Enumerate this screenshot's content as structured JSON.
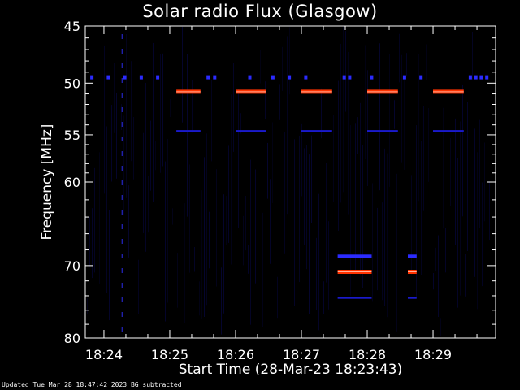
{
  "chart_data": {
    "type": "heatmap",
    "title": "Solar radio Flux (Glasgow)",
    "xlabel": "Start Time (28-Mar-23 18:23:43)",
    "ylabel": "Frequency [MHz]",
    "footer": "Updated Tue Mar 28 18:47:42 2023   BG subtracted",
    "y_scale": "log",
    "y_inverted": true,
    "ylim": [
      45,
      80
    ],
    "y_ticks": [
      45,
      50,
      55,
      60,
      70,
      80
    ],
    "y_tick_labels": [
      "45",
      "50",
      "55",
      "60",
      "70",
      "80"
    ],
    "xlim": [
      "18:23:43",
      "18:29:57"
    ],
    "x_ticks": [
      "18:24:00",
      "18:25:00",
      "18:26:00",
      "18:27:00",
      "18:28:00",
      "18:29:00"
    ],
    "x_tick_labels": [
      "18:24",
      "18:25",
      "18:26",
      "18:27",
      "18:28",
      "18:29"
    ],
    "colors": {
      "background": "#000000",
      "axes": "#ffffff",
      "weak": "#1a1acc",
      "medium": "#2b2bff",
      "strong": "#ff3300",
      "peak": "#ffd0c0"
    },
    "bursts": [
      {
        "start": "18:25:06",
        "end": "18:25:28",
        "freq": 50.8,
        "level": "strong"
      },
      {
        "start": "18:26:00",
        "end": "18:26:28",
        "freq": 50.8,
        "level": "strong"
      },
      {
        "start": "18:27:00",
        "end": "18:27:28",
        "freq": 50.8,
        "level": "strong"
      },
      {
        "start": "18:28:00",
        "end": "18:28:28",
        "freq": 50.8,
        "level": "strong"
      },
      {
        "start": "18:29:00",
        "end": "18:29:28",
        "freq": 50.8,
        "level": "strong"
      },
      {
        "start": "18:27:33",
        "end": "18:28:04",
        "freq": 70.8,
        "level": "strong"
      },
      {
        "start": "18:28:37",
        "end": "18:28:45",
        "freq": 70.8,
        "level": "strong"
      },
      {
        "start": "18:27:33",
        "end": "18:28:04",
        "freq": 68.8,
        "level": "medium"
      },
      {
        "start": "18:28:37",
        "end": "18:28:45",
        "freq": 68.8,
        "level": "medium"
      },
      {
        "start": "18:27:33",
        "end": "18:28:04",
        "freq": 74.3,
        "level": "weak"
      },
      {
        "start": "18:28:37",
        "end": "18:28:45",
        "freq": 74.3,
        "level": "weak"
      },
      {
        "start": "18:25:06",
        "end": "18:25:28",
        "freq": 54.6,
        "level": "weak"
      },
      {
        "start": "18:26:00",
        "end": "18:26:28",
        "freq": 54.6,
        "level": "weak"
      },
      {
        "start": "18:27:00",
        "end": "18:27:28",
        "freq": 54.6,
        "level": "weak"
      },
      {
        "start": "18:28:00",
        "end": "18:28:28",
        "freq": 54.6,
        "level": "weak"
      },
      {
        "start": "18:29:00",
        "end": "18:29:28",
        "freq": 54.6,
        "level": "weak"
      }
    ],
    "blips_freq": 49.5,
    "blips": [
      "18:23:49",
      "18:24:04",
      "18:24:19",
      "18:24:34",
      "18:24:49",
      "18:25:35",
      "18:25:41",
      "18:26:13",
      "18:26:34",
      "18:26:49",
      "18:27:04",
      "18:27:39",
      "18:27:44",
      "18:28:04",
      "18:28:34",
      "18:28:49",
      "18:29:34",
      "18:29:39",
      "18:29:44",
      "18:29:49"
    ]
  }
}
